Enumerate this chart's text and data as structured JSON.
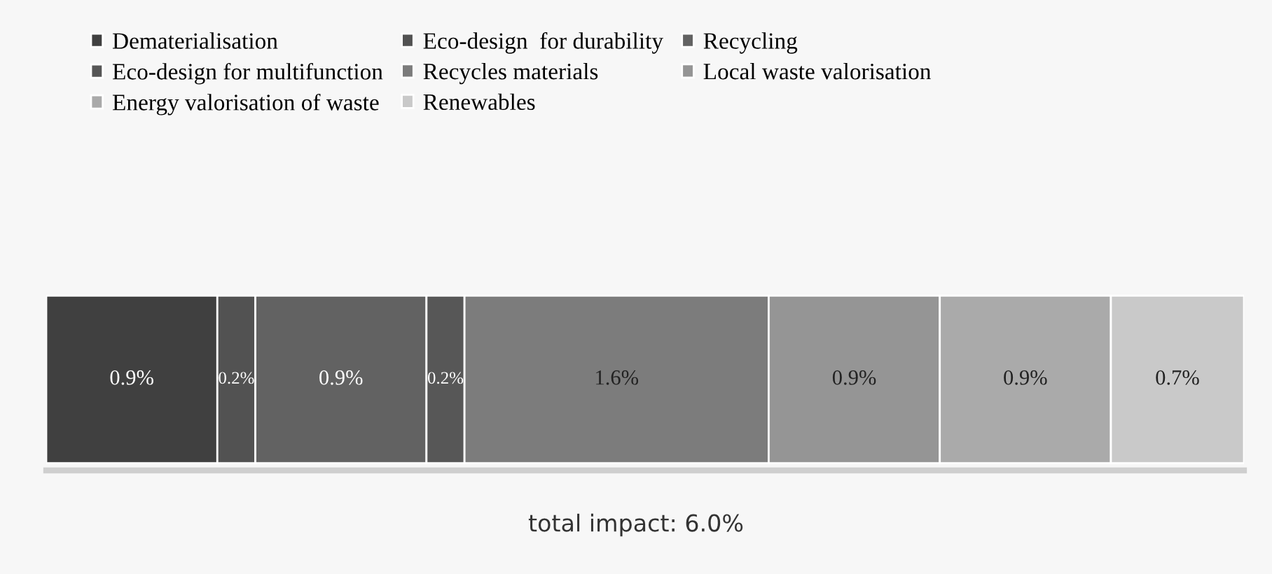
{
  "chart_data": {
    "type": "bar",
    "orientation": "horizontal",
    "stacked": true,
    "categories": [
      null
    ],
    "legend": "top",
    "series": [
      {
        "name": "Dematerialisation",
        "color": "#404040",
        "values": [
          0.9
        ],
        "value_labels": [
          "0.9%"
        ]
      },
      {
        "name": "Eco-design  for durability",
        "color": "#525252",
        "values": [
          0.2
        ],
        "value_labels": [
          "0.2%"
        ]
      },
      {
        "name": "Recycling",
        "color": "#626262",
        "values": [
          0.9
        ],
        "value_labels": [
          "0.9%"
        ]
      },
      {
        "name": "Eco-design for multifunction",
        "color": "#575757",
        "values": [
          0.2
        ],
        "value_labels": [
          "0.2%"
        ]
      },
      {
        "name": "Recycles materials",
        "color": "#7c7c7c",
        "values": [
          1.6
        ],
        "value_labels": [
          "1.6%"
        ]
      },
      {
        "name": "Local waste valorisation",
        "color": "#959595",
        "values": [
          0.9
        ],
        "value_labels": [
          "0.9%"
        ]
      },
      {
        "name": "Energy valorisation of waste",
        "color": "#aaaaaa",
        "values": [
          0.9
        ],
        "value_labels": [
          "0.9%"
        ]
      },
      {
        "name": "Renewables",
        "color": "#c9c9c9",
        "values": [
          0.7
        ],
        "value_labels": [
          "0.7%"
        ]
      }
    ],
    "annotations": [
      "total impact: 6.0%"
    ]
  }
}
